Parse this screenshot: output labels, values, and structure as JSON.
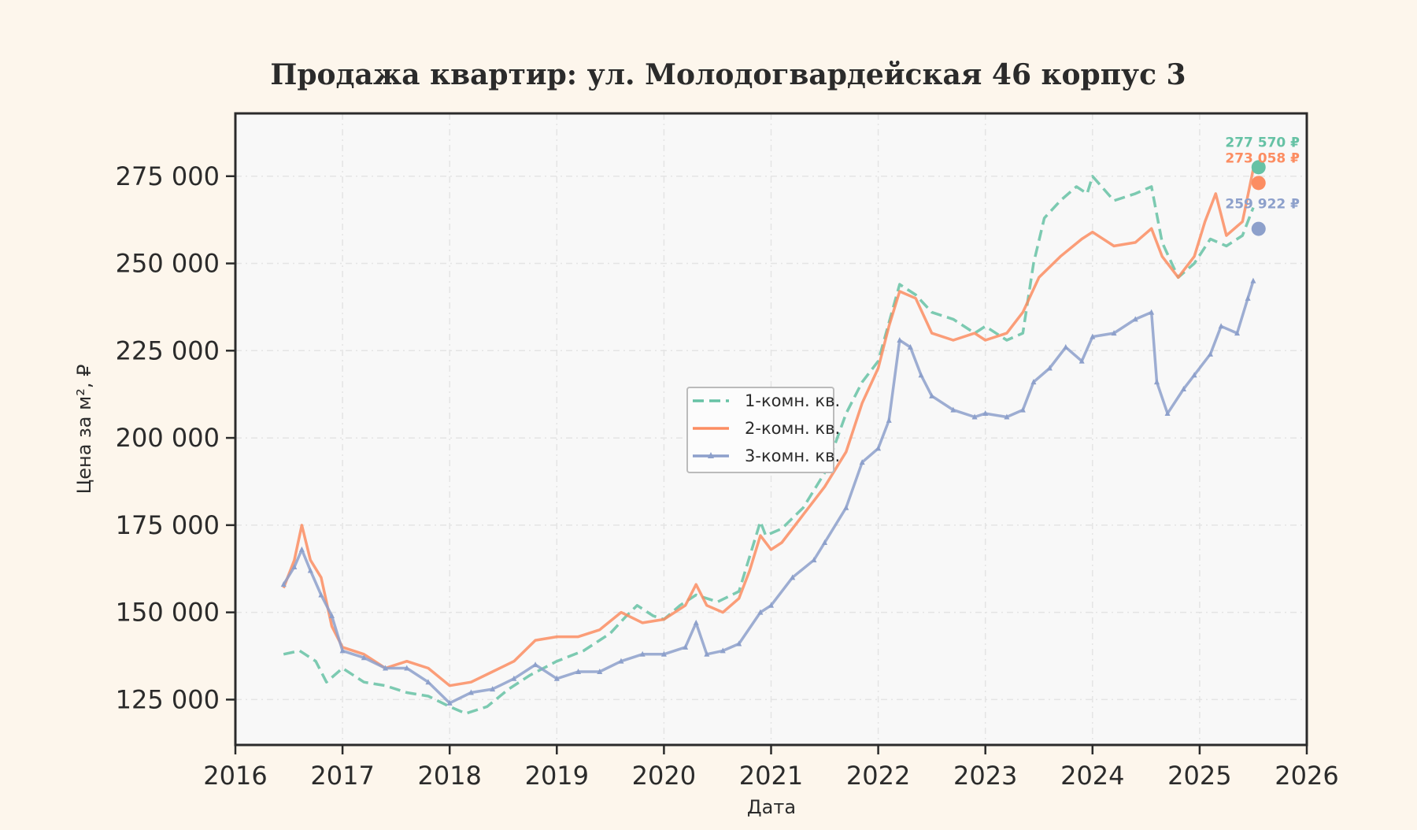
{
  "chart_data": {
    "type": "line",
    "title": "Продажа квартир: ул. Молодогвардейская 46 корпус 3",
    "xlabel": "Дата",
    "ylabel": "Цена за м², ₽",
    "xlim": [
      2016.0,
      2026.0
    ],
    "ylim": [
      112000,
      293000
    ],
    "x_ticks": [
      2016,
      2017,
      2018,
      2019,
      2020,
      2021,
      2022,
      2023,
      2024,
      2025,
      2026
    ],
    "x_tick_labels": [
      "2016",
      "2017",
      "2018",
      "2019",
      "2020",
      "2021",
      "2022",
      "2023",
      "2024",
      "2025",
      "2026"
    ],
    "y_ticks": [
      125000,
      150000,
      175000,
      200000,
      225000,
      250000,
      275000
    ],
    "y_tick_labels": [
      "125 000",
      "150 000",
      "175 000",
      "200 000",
      "225 000",
      "250 000",
      "275 000"
    ],
    "grid": true,
    "legend_position": "center",
    "series": [
      {
        "name": "1-комн. кв.",
        "color": "#66c2a5",
        "style": "dashed",
        "end_label": "277 570 ₽",
        "end_point": [
          2025.55,
          277570
        ],
        "points": [
          [
            2016.45,
            138000
          ],
          [
            2016.6,
            139000
          ],
          [
            2016.75,
            136000
          ],
          [
            2016.85,
            130000
          ],
          [
            2017.0,
            134000
          ],
          [
            2017.2,
            130000
          ],
          [
            2017.4,
            129000
          ],
          [
            2017.6,
            127000
          ],
          [
            2017.8,
            126000
          ],
          [
            2018.0,
            123000
          ],
          [
            2018.15,
            121000
          ],
          [
            2018.35,
            123000
          ],
          [
            2018.55,
            128000
          ],
          [
            2018.75,
            132000
          ],
          [
            2019.0,
            136000
          ],
          [
            2019.25,
            139000
          ],
          [
            2019.5,
            144000
          ],
          [
            2019.65,
            149000
          ],
          [
            2019.75,
            152000
          ],
          [
            2019.9,
            149000
          ],
          [
            2020.0,
            148000
          ],
          [
            2020.15,
            152000
          ],
          [
            2020.3,
            155000
          ],
          [
            2020.5,
            153000
          ],
          [
            2020.7,
            156000
          ],
          [
            2020.9,
            176000
          ],
          [
            2020.95,
            172000
          ],
          [
            2021.1,
            174000
          ],
          [
            2021.3,
            180000
          ],
          [
            2021.5,
            190000
          ],
          [
            2021.7,
            207000
          ],
          [
            2021.85,
            216000
          ],
          [
            2022.0,
            222000
          ],
          [
            2022.1,
            233000
          ],
          [
            2022.2,
            244000
          ],
          [
            2022.35,
            241000
          ],
          [
            2022.5,
            236000
          ],
          [
            2022.7,
            234000
          ],
          [
            2022.9,
            230000
          ],
          [
            2023.0,
            232000
          ],
          [
            2023.2,
            228000
          ],
          [
            2023.35,
            230000
          ],
          [
            2023.45,
            250000
          ],
          [
            2023.55,
            263000
          ],
          [
            2023.7,
            268000
          ],
          [
            2023.85,
            272000
          ],
          [
            2023.95,
            270000
          ],
          [
            2024.0,
            275000
          ],
          [
            2024.2,
            268000
          ],
          [
            2024.4,
            270000
          ],
          [
            2024.55,
            272000
          ],
          [
            2024.65,
            256000
          ],
          [
            2024.8,
            246000
          ],
          [
            2024.95,
            250000
          ],
          [
            2025.1,
            257000
          ],
          [
            2025.25,
            255000
          ],
          [
            2025.4,
            258000
          ],
          [
            2025.5,
            266000
          ]
        ]
      },
      {
        "name": "2-комн. кв.",
        "color": "#fc8d62",
        "style": "solid",
        "end_label": "273 058 ₽",
        "end_point": [
          2025.55,
          273058
        ],
        "points": [
          [
            2016.45,
            157000
          ],
          [
            2016.55,
            165000
          ],
          [
            2016.62,
            175000
          ],
          [
            2016.7,
            165000
          ],
          [
            2016.8,
            160000
          ],
          [
            2016.9,
            146000
          ],
          [
            2017.0,
            140000
          ],
          [
            2017.2,
            138000
          ],
          [
            2017.4,
            134000
          ],
          [
            2017.6,
            136000
          ],
          [
            2017.8,
            134000
          ],
          [
            2018.0,
            129000
          ],
          [
            2018.2,
            130000
          ],
          [
            2018.4,
            133000
          ],
          [
            2018.6,
            136000
          ],
          [
            2018.8,
            142000
          ],
          [
            2019.0,
            143000
          ],
          [
            2019.2,
            143000
          ],
          [
            2019.4,
            145000
          ],
          [
            2019.6,
            150000
          ],
          [
            2019.8,
            147000
          ],
          [
            2020.0,
            148000
          ],
          [
            2020.2,
            152000
          ],
          [
            2020.3,
            158000
          ],
          [
            2020.4,
            152000
          ],
          [
            2020.55,
            150000
          ],
          [
            2020.7,
            154000
          ],
          [
            2020.8,
            162000
          ],
          [
            2020.9,
            172000
          ],
          [
            2021.0,
            168000
          ],
          [
            2021.1,
            170000
          ],
          [
            2021.3,
            178000
          ],
          [
            2021.5,
            186000
          ],
          [
            2021.7,
            196000
          ],
          [
            2021.85,
            210000
          ],
          [
            2022.0,
            220000
          ],
          [
            2022.1,
            232000
          ],
          [
            2022.2,
            242000
          ],
          [
            2022.35,
            240000
          ],
          [
            2022.5,
            230000
          ],
          [
            2022.7,
            228000
          ],
          [
            2022.9,
            230000
          ],
          [
            2023.0,
            228000
          ],
          [
            2023.2,
            230000
          ],
          [
            2023.35,
            236000
          ],
          [
            2023.5,
            246000
          ],
          [
            2023.7,
            252000
          ],
          [
            2023.9,
            257000
          ],
          [
            2024.0,
            259000
          ],
          [
            2024.2,
            255000
          ],
          [
            2024.4,
            256000
          ],
          [
            2024.55,
            260000
          ],
          [
            2024.65,
            252000
          ],
          [
            2024.8,
            246000
          ],
          [
            2024.95,
            252000
          ],
          [
            2025.05,
            262000
          ],
          [
            2025.15,
            270000
          ],
          [
            2025.25,
            258000
          ],
          [
            2025.4,
            262000
          ],
          [
            2025.5,
            277000
          ]
        ]
      },
      {
        "name": "3-комн. кв.",
        "color": "#8da0cb",
        "style": "solid-marker",
        "end_label": "259 922 ₽",
        "end_point": [
          2025.55,
          259922
        ],
        "points": [
          [
            2016.45,
            158000
          ],
          [
            2016.55,
            163000
          ],
          [
            2016.62,
            168000
          ],
          [
            2016.7,
            162000
          ],
          [
            2016.8,
            155000
          ],
          [
            2016.9,
            149000
          ],
          [
            2017.0,
            139000
          ],
          [
            2017.2,
            137000
          ],
          [
            2017.4,
            134000
          ],
          [
            2017.6,
            134000
          ],
          [
            2017.8,
            130000
          ],
          [
            2018.0,
            124000
          ],
          [
            2018.2,
            127000
          ],
          [
            2018.4,
            128000
          ],
          [
            2018.6,
            131000
          ],
          [
            2018.8,
            135000
          ],
          [
            2019.0,
            131000
          ],
          [
            2019.2,
            133000
          ],
          [
            2019.4,
            133000
          ],
          [
            2019.6,
            136000
          ],
          [
            2019.8,
            138000
          ],
          [
            2020.0,
            138000
          ],
          [
            2020.2,
            140000
          ],
          [
            2020.3,
            147000
          ],
          [
            2020.4,
            138000
          ],
          [
            2020.55,
            139000
          ],
          [
            2020.7,
            141000
          ],
          [
            2020.9,
            150000
          ],
          [
            2021.0,
            152000
          ],
          [
            2021.2,
            160000
          ],
          [
            2021.4,
            165000
          ],
          [
            2021.5,
            170000
          ],
          [
            2021.7,
            180000
          ],
          [
            2021.85,
            193000
          ],
          [
            2022.0,
            197000
          ],
          [
            2022.1,
            205000
          ],
          [
            2022.2,
            228000
          ],
          [
            2022.3,
            226000
          ],
          [
            2022.4,
            218000
          ],
          [
            2022.5,
            212000
          ],
          [
            2022.7,
            208000
          ],
          [
            2022.9,
            206000
          ],
          [
            2023.0,
            207000
          ],
          [
            2023.2,
            206000
          ],
          [
            2023.35,
            208000
          ],
          [
            2023.45,
            216000
          ],
          [
            2023.6,
            220000
          ],
          [
            2023.75,
            226000
          ],
          [
            2023.9,
            222000
          ],
          [
            2024.0,
            229000
          ],
          [
            2024.2,
            230000
          ],
          [
            2024.4,
            234000
          ],
          [
            2024.55,
            236000
          ],
          [
            2024.6,
            216000
          ],
          [
            2024.7,
            207000
          ],
          [
            2024.85,
            214000
          ],
          [
            2024.95,
            218000
          ],
          [
            2025.1,
            224000
          ],
          [
            2025.2,
            232000
          ],
          [
            2025.35,
            230000
          ],
          [
            2025.45,
            240000
          ],
          [
            2025.5,
            245000
          ]
        ]
      }
    ]
  }
}
